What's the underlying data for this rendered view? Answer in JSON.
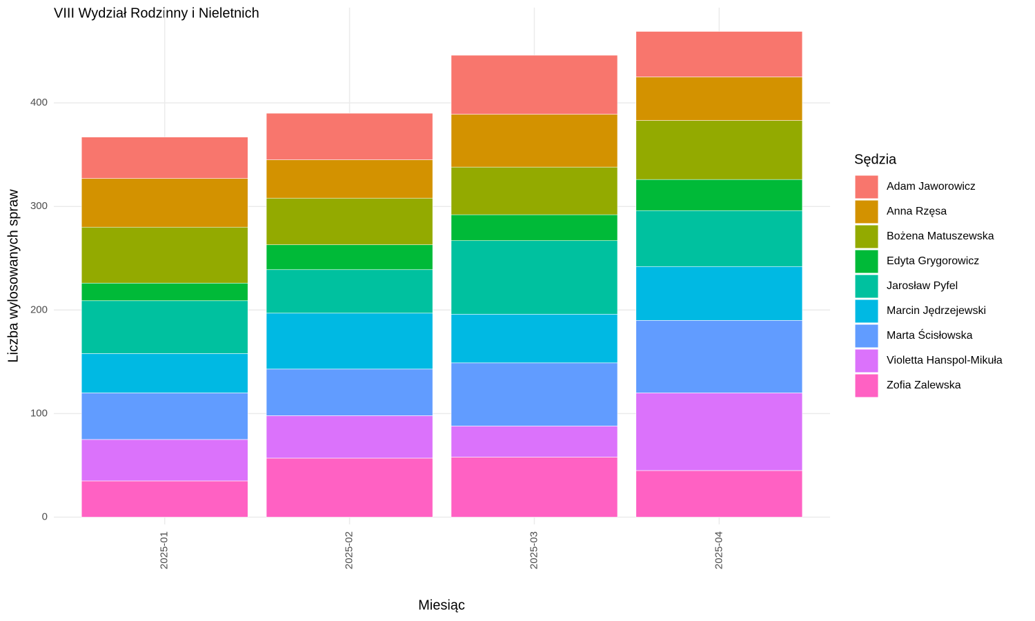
{
  "chart_data": {
    "type": "stacked_bar",
    "title": "VIII Wydział Rodzinny i Nieletnich",
    "x_label": "Miesiąc",
    "y_label": "Liczba wylosowanych spraw",
    "legend_title": "Sędzia",
    "legend_position": "right",
    "grid": true,
    "categories": [
      "2025-01",
      "2025-02",
      "2025-03",
      "2025-04"
    ],
    "ylim": [
      -7,
      492
    ],
    "yticks": [
      0,
      100,
      200,
      300,
      400
    ],
    "series": [
      {
        "name": "Adam Jaworowicz",
        "color": "#F8766D",
        "values": [
          40,
          45,
          57,
          44
        ]
      },
      {
        "name": "Anna Rzęsa",
        "color": "#D39200",
        "values": [
          47,
          37,
          51,
          42
        ]
      },
      {
        "name": "Bożena Matuszewska",
        "color": "#93AA00",
        "values": [
          54,
          45,
          46,
          57
        ]
      },
      {
        "name": "Edyta Grygorowicz",
        "color": "#00BA38",
        "values": [
          17,
          24,
          25,
          30
        ]
      },
      {
        "name": "Jarosław Pyfel",
        "color": "#00C19F",
        "values": [
          51,
          42,
          71,
          54
        ]
      },
      {
        "name": "Marcin Jędrzejewski",
        "color": "#00B9E3",
        "values": [
          38,
          54,
          47,
          52
        ]
      },
      {
        "name": "Marta Ścisłowska",
        "color": "#619CFF",
        "values": [
          45,
          45,
          61,
          70
        ]
      },
      {
        "name": "Violetta Hanspol-Mikuła",
        "color": "#DB72FB",
        "values": [
          40,
          41,
          30,
          75
        ]
      },
      {
        "name": "Zofia Zalewska",
        "color": "#FF61C3",
        "values": [
          35,
          57,
          58,
          45
        ]
      }
    ]
  }
}
